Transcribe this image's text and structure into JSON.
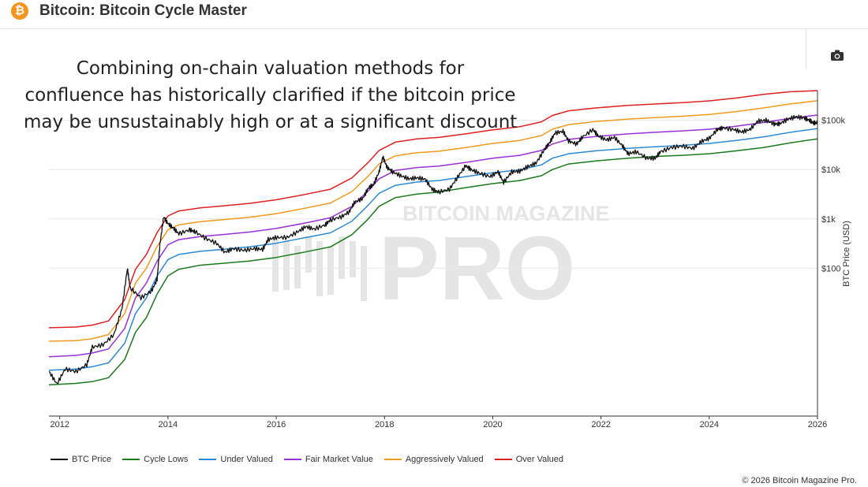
{
  "header": {
    "title": "Bitcoin: Bitcoin Cycle Master",
    "icon": "bitcoin-icon",
    "icon_glyph": "₿"
  },
  "toolbar": {
    "camera_icon": "camera-icon"
  },
  "overlay_text": [
    "Combining on-chain valuation methods for",
    "confluence has historically clarified if the bitcoin price",
    "may be unsustainably high or at a significant discount"
  ],
  "watermark": {
    "line1": "BITCOIN MAGAZINE",
    "line2": "PRO"
  },
  "copyright": "© 2026 Bitcoin Magazine Pro.",
  "chart_data": {
    "type": "line",
    "title": "Bitcoin: Bitcoin Cycle Master",
    "ylabel": "BTC Price (USD)",
    "xlabel": "",
    "y_scale": "log",
    "ylim": [
      0.1,
      400000
    ],
    "xlim": [
      2011.8,
      2026.0
    ],
    "x_ticks": [
      "2012",
      "2014",
      "2016",
      "2018",
      "2020",
      "2022",
      "2024",
      "2026"
    ],
    "y_ticks": [
      {
        "value": 100,
        "label": "$100"
      },
      {
        "value": 1000,
        "label": "$1k"
      },
      {
        "value": 10000,
        "label": "$10k"
      },
      {
        "value": 100000,
        "label": "$100k"
      }
    ],
    "legend_position": "bottom-left",
    "series": [
      {
        "name": "BTC Price",
        "color": "#111111",
        "points": [
          [
            2011.8,
            0.8
          ],
          [
            2011.95,
            0.45
          ],
          [
            2012.1,
            0.9
          ],
          [
            2012.3,
            0.8
          ],
          [
            2012.5,
            1.1
          ],
          [
            2012.6,
            2.5
          ],
          [
            2012.8,
            2.8
          ],
          [
            2013.0,
            4.5
          ],
          [
            2013.15,
            15
          ],
          [
            2013.25,
            100
          ],
          [
            2013.3,
            40
          ],
          [
            2013.5,
            25
          ],
          [
            2013.7,
            35
          ],
          [
            2013.8,
            60
          ],
          [
            2013.85,
            300
          ],
          [
            2013.92,
            1100
          ],
          [
            2014.0,
            800
          ],
          [
            2014.1,
            650
          ],
          [
            2014.2,
            500
          ],
          [
            2014.4,
            600
          ],
          [
            2014.5,
            550
          ],
          [
            2014.7,
            400
          ],
          [
            2014.9,
            320
          ],
          [
            2015.05,
            210
          ],
          [
            2015.2,
            250
          ],
          [
            2015.4,
            230
          ],
          [
            2015.6,
            250
          ],
          [
            2015.75,
            240
          ],
          [
            2015.85,
            380
          ],
          [
            2016.0,
            420
          ],
          [
            2016.2,
            420
          ],
          [
            2016.4,
            550
          ],
          [
            2016.55,
            700
          ],
          [
            2016.7,
            620
          ],
          [
            2016.9,
            750
          ],
          [
            2017.0,
            950
          ],
          [
            2017.2,
            1100
          ],
          [
            2017.35,
            1400
          ],
          [
            2017.45,
            2200
          ],
          [
            2017.6,
            2600
          ],
          [
            2017.7,
            4200
          ],
          [
            2017.8,
            5000
          ],
          [
            2017.9,
            9000
          ],
          [
            2017.97,
            18000
          ],
          [
            2018.05,
            11000
          ],
          [
            2018.15,
            9000
          ],
          [
            2018.3,
            7500
          ],
          [
            2018.45,
            6500
          ],
          [
            2018.6,
            6800
          ],
          [
            2018.75,
            6400
          ],
          [
            2018.88,
            4000
          ],
          [
            2019.0,
            3500
          ],
          [
            2019.2,
            4000
          ],
          [
            2019.35,
            7000
          ],
          [
            2019.5,
            12000
          ],
          [
            2019.6,
            10000
          ],
          [
            2019.75,
            8500
          ],
          [
            2019.95,
            7200
          ],
          [
            2020.1,
            9000
          ],
          [
            2020.2,
            5500
          ],
          [
            2020.35,
            9000
          ],
          [
            2020.5,
            9300
          ],
          [
            2020.65,
            11500
          ],
          [
            2020.8,
            13500
          ],
          [
            2020.95,
            25000
          ],
          [
            2021.05,
            35000
          ],
          [
            2021.15,
            55000
          ],
          [
            2021.3,
            60000
          ],
          [
            2021.4,
            38000
          ],
          [
            2021.55,
            33000
          ],
          [
            2021.65,
            45000
          ],
          [
            2021.85,
            65000
          ],
          [
            2021.95,
            48000
          ],
          [
            2022.1,
            40000
          ],
          [
            2022.25,
            45000
          ],
          [
            2022.4,
            30000
          ],
          [
            2022.5,
            21000
          ],
          [
            2022.65,
            23000
          ],
          [
            2022.85,
            17000
          ],
          [
            2023.0,
            17000
          ],
          [
            2023.1,
            23000
          ],
          [
            2023.3,
            28000
          ],
          [
            2023.5,
            30000
          ],
          [
            2023.7,
            27000
          ],
          [
            2023.85,
            37000
          ],
          [
            2024.0,
            43000
          ],
          [
            2024.15,
            65000
          ],
          [
            2024.25,
            70000
          ],
          [
            2024.45,
            65000
          ],
          [
            2024.6,
            58000
          ],
          [
            2024.75,
            65000
          ],
          [
            2024.9,
            96000
          ],
          [
            2025.05,
            100000
          ],
          [
            2025.2,
            84000
          ],
          [
            2025.3,
            85000
          ],
          [
            2025.45,
            105000
          ],
          [
            2025.6,
            118000
          ],
          [
            2025.75,
            112000
          ],
          [
            2025.85,
            100000
          ],
          [
            2025.93,
            88000
          ],
          [
            2026.0,
            90000
          ]
        ]
      },
      {
        "name": "Cycle Lows",
        "color": "#1b7a1b",
        "points": [
          [
            2011.8,
            0.43
          ],
          [
            2012.3,
            0.46
          ],
          [
            2012.6,
            0.5
          ],
          [
            2012.9,
            0.6
          ],
          [
            2013.2,
            1.4
          ],
          [
            2013.4,
            5
          ],
          [
            2013.6,
            10
          ],
          [
            2013.8,
            30
          ],
          [
            2014.0,
            70
          ],
          [
            2014.2,
            95
          ],
          [
            2014.6,
            115
          ],
          [
            2015.0,
            125
          ],
          [
            2015.5,
            140
          ],
          [
            2016.0,
            165
          ],
          [
            2016.5,
            210
          ],
          [
            2017.0,
            270
          ],
          [
            2017.4,
            480
          ],
          [
            2017.7,
            1000
          ],
          [
            2017.9,
            1800
          ],
          [
            2018.2,
            2700
          ],
          [
            2018.6,
            3200
          ],
          [
            2019.0,
            3500
          ],
          [
            2019.5,
            4300
          ],
          [
            2020.0,
            5200
          ],
          [
            2020.5,
            6000
          ],
          [
            2020.9,
            7500
          ],
          [
            2021.1,
            10000
          ],
          [
            2021.4,
            13000
          ],
          [
            2021.9,
            15000
          ],
          [
            2022.5,
            17000
          ],
          [
            2023.0,
            18500
          ],
          [
            2023.5,
            19500
          ],
          [
            2024.0,
            21000
          ],
          [
            2024.5,
            24000
          ],
          [
            2025.0,
            28000
          ],
          [
            2025.5,
            35000
          ],
          [
            2026.0,
            42000
          ]
        ]
      },
      {
        "name": "Under Valued",
        "color": "#2b8ad6",
        "points": [
          [
            2011.8,
            0.85
          ],
          [
            2012.3,
            0.9
          ],
          [
            2012.6,
            1.0
          ],
          [
            2012.9,
            1.2
          ],
          [
            2013.2,
            3
          ],
          [
            2013.4,
            12
          ],
          [
            2013.6,
            25
          ],
          [
            2013.8,
            70
          ],
          [
            2014.0,
            150
          ],
          [
            2014.2,
            190
          ],
          [
            2014.6,
            220
          ],
          [
            2015.0,
            240
          ],
          [
            2015.5,
            270
          ],
          [
            2016.0,
            320
          ],
          [
            2016.5,
            410
          ],
          [
            2017.0,
            520
          ],
          [
            2017.4,
            900
          ],
          [
            2017.7,
            1900
          ],
          [
            2017.9,
            3300
          ],
          [
            2018.2,
            4800
          ],
          [
            2018.6,
            5600
          ],
          [
            2019.0,
            6000
          ],
          [
            2019.5,
            7200
          ],
          [
            2020.0,
            8600
          ],
          [
            2020.5,
            9900
          ],
          [
            2020.9,
            12500
          ],
          [
            2021.1,
            17000
          ],
          [
            2021.4,
            21000
          ],
          [
            2021.9,
            24000
          ],
          [
            2022.5,
            27000
          ],
          [
            2023.0,
            29000
          ],
          [
            2023.5,
            31000
          ],
          [
            2024.0,
            34000
          ],
          [
            2024.5,
            39000
          ],
          [
            2025.0,
            46000
          ],
          [
            2025.5,
            57000
          ],
          [
            2026.0,
            68000
          ]
        ]
      },
      {
        "name": "Fair Market Value",
        "color": "#9b30d9",
        "points": [
          [
            2011.8,
            1.6
          ],
          [
            2012.3,
            1.7
          ],
          [
            2012.6,
            1.9
          ],
          [
            2012.9,
            2.3
          ],
          [
            2013.2,
            6
          ],
          [
            2013.4,
            25
          ],
          [
            2013.6,
            50
          ],
          [
            2013.8,
            140
          ],
          [
            2014.0,
            300
          ],
          [
            2014.2,
            380
          ],
          [
            2014.6,
            440
          ],
          [
            2015.0,
            480
          ],
          [
            2015.5,
            540
          ],
          [
            2016.0,
            640
          ],
          [
            2016.5,
            810
          ],
          [
            2017.0,
            1050
          ],
          [
            2017.4,
            1800
          ],
          [
            2017.7,
            3700
          ],
          [
            2017.9,
            6500
          ],
          [
            2018.2,
            9600
          ],
          [
            2018.6,
            11000
          ],
          [
            2019.0,
            11800
          ],
          [
            2019.5,
            14000
          ],
          [
            2020.0,
            17000
          ],
          [
            2020.5,
            19500
          ],
          [
            2020.9,
            24500
          ],
          [
            2021.1,
            33000
          ],
          [
            2021.4,
            41000
          ],
          [
            2021.9,
            47000
          ],
          [
            2022.5,
            53000
          ],
          [
            2023.0,
            57000
          ],
          [
            2023.5,
            61000
          ],
          [
            2024.0,
            66000
          ],
          [
            2024.5,
            76000
          ],
          [
            2025.0,
            90000
          ],
          [
            2025.5,
            110000
          ],
          [
            2026.0,
            128000
          ]
        ]
      },
      {
        "name": "Aggressively Valued",
        "color": "#f29a1d",
        "points": [
          [
            2011.8,
            3.3
          ],
          [
            2012.3,
            3.4
          ],
          [
            2012.6,
            3.7
          ],
          [
            2012.9,
            4.5
          ],
          [
            2013.2,
            12
          ],
          [
            2013.4,
            50
          ],
          [
            2013.6,
            100
          ],
          [
            2013.8,
            280
          ],
          [
            2014.0,
            600
          ],
          [
            2014.2,
            760
          ],
          [
            2014.6,
            880
          ],
          [
            2015.0,
            960
          ],
          [
            2015.5,
            1080
          ],
          [
            2016.0,
            1280
          ],
          [
            2016.5,
            1620
          ],
          [
            2017.0,
            2100
          ],
          [
            2017.4,
            3600
          ],
          [
            2017.7,
            7400
          ],
          [
            2017.9,
            13000
          ],
          [
            2018.2,
            19000
          ],
          [
            2018.6,
            22000
          ],
          [
            2019.0,
            23500
          ],
          [
            2019.5,
            28000
          ],
          [
            2020.0,
            34000
          ],
          [
            2020.5,
            39000
          ],
          [
            2020.9,
            49000
          ],
          [
            2021.1,
            66000
          ],
          [
            2021.4,
            82000
          ],
          [
            2021.9,
            94000
          ],
          [
            2022.5,
            106000
          ],
          [
            2023.0,
            113000
          ],
          [
            2023.5,
            121000
          ],
          [
            2024.0,
            131000
          ],
          [
            2024.5,
            150000
          ],
          [
            2025.0,
            178000
          ],
          [
            2025.5,
            215000
          ],
          [
            2026.0,
            250000
          ]
        ]
      },
      {
        "name": "Over Valued",
        "color": "#e02020",
        "points": [
          [
            2011.8,
            6.2
          ],
          [
            2012.3,
            6.4
          ],
          [
            2012.6,
            7
          ],
          [
            2012.9,
            8.5
          ],
          [
            2013.2,
            23
          ],
          [
            2013.4,
            95
          ],
          [
            2013.6,
            190
          ],
          [
            2013.8,
            530
          ],
          [
            2014.0,
            1150
          ],
          [
            2014.2,
            1450
          ],
          [
            2014.6,
            1680
          ],
          [
            2015.0,
            1830
          ],
          [
            2015.5,
            2060
          ],
          [
            2016.0,
            2440
          ],
          [
            2016.5,
            3080
          ],
          [
            2017.0,
            4000
          ],
          [
            2017.4,
            6800
          ],
          [
            2017.7,
            14000
          ],
          [
            2017.9,
            24500
          ],
          [
            2018.2,
            36000
          ],
          [
            2018.6,
            42000
          ],
          [
            2019.0,
            45000
          ],
          [
            2019.5,
            53000
          ],
          [
            2020.0,
            64000
          ],
          [
            2020.5,
            74000
          ],
          [
            2020.9,
            93000
          ],
          [
            2021.1,
            125000
          ],
          [
            2021.4,
            156000
          ],
          [
            2021.9,
            178000
          ],
          [
            2022.5,
            200000
          ],
          [
            2023.0,
            214000
          ],
          [
            2023.5,
            229000
          ],
          [
            2024.0,
            248000
          ],
          [
            2024.5,
            283000
          ],
          [
            2025.0,
            335000
          ],
          [
            2025.5,
            380000
          ],
          [
            2026.0,
            400000
          ]
        ]
      }
    ]
  }
}
